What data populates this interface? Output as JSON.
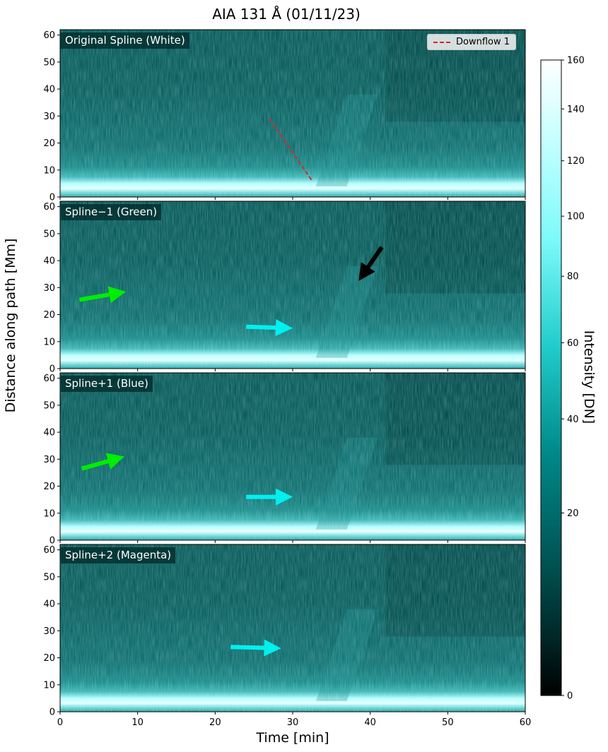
{
  "title": "AIA 131 Å (01/11/23)",
  "chart_data": {
    "type": "heatmap",
    "xlabel": "Time [min]",
    "ylabel": "Distance along path [Mm]",
    "xlim": [
      0,
      60
    ],
    "ylim": [
      0,
      62
    ],
    "xticks": [
      0,
      10,
      20,
      30,
      40,
      50,
      60
    ],
    "yticks": [
      0,
      10,
      20,
      30,
      40,
      50,
      60
    ],
    "colorbar": {
      "label": "Intensity [DN]",
      "ticks": [
        0,
        20,
        40,
        60,
        80,
        100,
        120,
        140,
        160
      ],
      "range": [
        0,
        160
      ],
      "scale": "power",
      "colormap": [
        "#000000",
        "#004040",
        "#008b8b",
        "#00cccc",
        "#7fffff",
        "#ffffff"
      ]
    },
    "panels": [
      {
        "label": "Original Spline (White)",
        "legend": {
          "label": "Downflow 1",
          "color": "#d62728",
          "style": "dashed",
          "position": "upper right"
        },
        "lines": [
          {
            "x": [
              27,
              32.5
            ],
            "y": [
              29,
              6
            ],
            "color": "#d62728"
          }
        ],
        "arrows": []
      },
      {
        "label": "Spline−1 (Green)",
        "arrows": [
          {
            "x0": 2.5,
            "y0": 25.5,
            "x1": 8.5,
            "y1": 28.5,
            "color": "#00ee00"
          },
          {
            "x0": 24,
            "y0": 15.5,
            "x1": 30,
            "y1": 15,
            "color": "#00f0f0"
          },
          {
            "x0": 41.5,
            "y0": 45,
            "x1": 38.5,
            "y1": 32.5,
            "color": "#000000"
          }
        ]
      },
      {
        "label": "Spline+1 (Blue)",
        "arrows": [
          {
            "x0": 2.8,
            "y0": 26.5,
            "x1": 8.3,
            "y1": 31,
            "color": "#00ee00"
          },
          {
            "x0": 24,
            "y0": 16,
            "x1": 30,
            "y1": 16,
            "color": "#00f0f0"
          }
        ]
      },
      {
        "label": "Spline+2 (Magenta)",
        "arrows": [
          {
            "x0": 22,
            "y0": 24,
            "x1": 28.5,
            "y1": 23.5,
            "color": "#00f0f0"
          }
        ]
      }
    ]
  }
}
